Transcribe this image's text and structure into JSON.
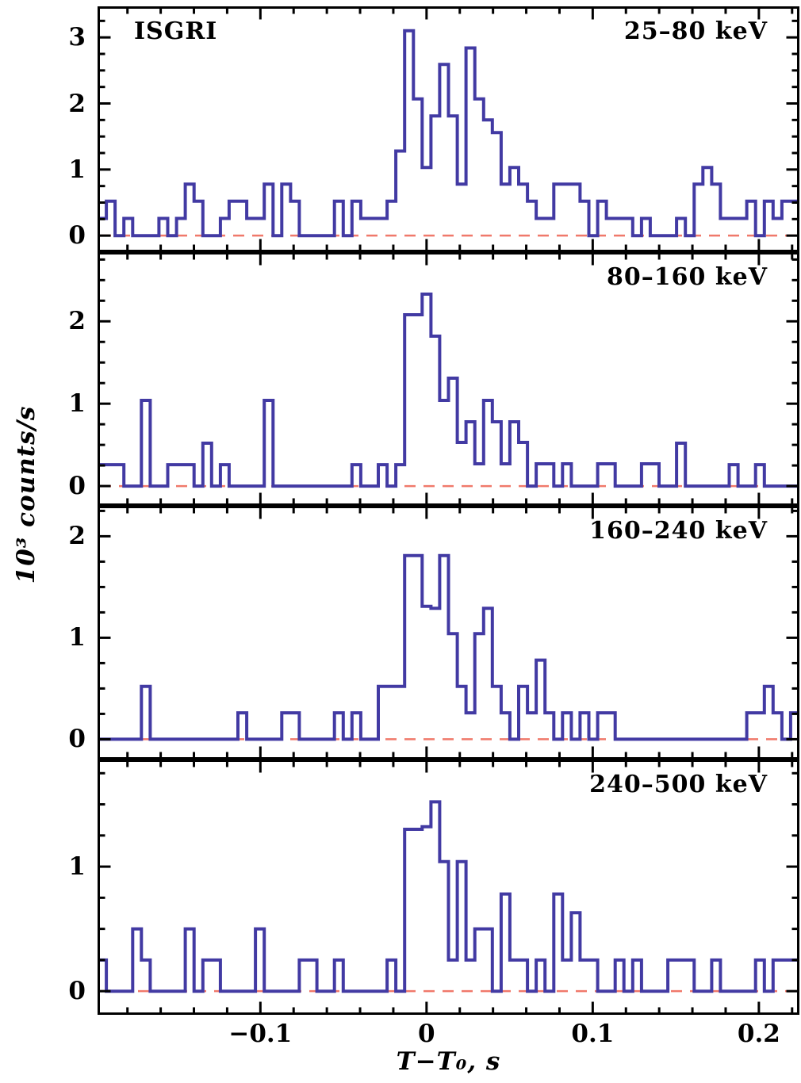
{
  "figure": {
    "instrument_label": "ISGRI",
    "x_axis_title": "T−T₀, s",
    "y_axis_title": "10³ counts/s",
    "colors": {
      "histogram": "#423aa3",
      "zero_line": "#f0796b",
      "frame": "#000000",
      "background": "#ffffff",
      "text": "#000000"
    },
    "x_axis": {
      "min": -0.198,
      "max": 0.2244,
      "major_ticks": [
        -0.1,
        0,
        0.1,
        0.2
      ],
      "major_tick_labels": [
        "−0.1",
        "0",
        "0.1",
        "0.2"
      ],
      "minor_tick_step": 0.02
    }
  },
  "chart_data": [
    {
      "type": "step-histogram",
      "energy_label": "25–80 keV",
      "unit": "10³ counts/s",
      "bin_start_s": -0.198,
      "bin_width_s": 0.00528,
      "ylim": [
        -0.25,
        3.47
      ],
      "y_major_ticks": [
        0,
        1,
        2,
        3
      ],
      "y_minor_step": 0.25,
      "values": [
        0.26,
        0.52,
        0,
        0.26,
        0,
        0,
        0,
        0.26,
        0,
        0.26,
        0.78,
        0.52,
        0,
        0,
        0.26,
        0.52,
        0.52,
        0.26,
        0.26,
        0.78,
        0,
        0.78,
        0.52,
        0,
        0,
        0,
        0,
        0.52,
        0,
        0.52,
        0.26,
        0.26,
        0.26,
        0.52,
        1.28,
        3.1,
        2.07,
        1.03,
        1.81,
        2.59,
        1.81,
        0.78,
        2.84,
        2.07,
        1.75,
        1.56,
        0.78,
        1.03,
        0.78,
        0.52,
        0.26,
        0.26,
        0.78,
        0.78,
        0.78,
        0.52,
        0,
        0.52,
        0.26,
        0.26,
        0.26,
        0,
        0.26,
        0,
        0,
        0,
        0.26,
        0,
        0.78,
        1.03,
        0.78,
        0.26,
        0.26,
        0.26,
        0.52,
        0,
        0.52,
        0.26,
        0.52,
        0.52
      ]
    },
    {
      "type": "step-histogram",
      "energy_label": "80–160 keV",
      "unit": "10³ counts/s",
      "bin_start_s": -0.198,
      "bin_width_s": 0.00528,
      "ylim": [
        -0.24,
        2.84
      ],
      "y_major_ticks": [
        0,
        1,
        2
      ],
      "y_minor_step": 0.25,
      "values": [
        0.26,
        0.26,
        0.26,
        0,
        0,
        1.04,
        0,
        0,
        0.26,
        0.26,
        0.26,
        0,
        0.52,
        0,
        0.26,
        0,
        0,
        0,
        0,
        1.04,
        0,
        0,
        0,
        0,
        0,
        0,
        0,
        0,
        0,
        0.26,
        0,
        0,
        0.26,
        0,
        0.26,
        2.08,
        2.08,
        2.33,
        1.82,
        1.04,
        1.31,
        0.53,
        0.78,
        0.27,
        1.04,
        0.78,
        0.27,
        0.78,
        0.53,
        0,
        0.27,
        0.27,
        0,
        0.27,
        0,
        0,
        0,
        0.27,
        0.27,
        0,
        0,
        0,
        0.27,
        0.27,
        0,
        0,
        0.52,
        0,
        0,
        0,
        0,
        0,
        0.26,
        0,
        0,
        0.26,
        0,
        0,
        0,
        0
      ]
    },
    {
      "type": "step-histogram",
      "energy_label": "160–240 keV",
      "unit": "10³ counts/s",
      "bin_start_s": -0.198,
      "bin_width_s": 0.00528,
      "ylim": [
        -0.2,
        2.3
      ],
      "y_major_ticks": [
        0,
        1,
        2
      ],
      "y_minor_step": 0.25,
      "values": [
        0,
        0,
        0,
        0,
        0,
        0.52,
        0,
        0,
        0,
        0,
        0,
        0,
        0,
        0,
        0,
        0,
        0.26,
        0,
        0,
        0,
        0,
        0.26,
        0.26,
        0,
        0,
        0,
        0,
        0.26,
        0,
        0.26,
        0,
        0,
        0.52,
        0.52,
        0.52,
        1.81,
        1.81,
        1.31,
        1.29,
        1.81,
        1.04,
        0.52,
        0.26,
        1.04,
        1.29,
        0.52,
        0.26,
        0,
        0.52,
        0.26,
        0.78,
        0.26,
        0,
        0.26,
        0,
        0.26,
        0,
        0.26,
        0.26,
        0,
        0,
        0,
        0,
        0,
        0,
        0,
        0,
        0,
        0,
        0,
        0,
        0,
        0,
        0,
        0.26,
        0.26,
        0.52,
        0.26,
        0,
        0.26
      ]
    },
    {
      "type": "step-histogram",
      "energy_label": "240–500 keV",
      "unit": "10³ counts/s",
      "bin_start_s": -0.198,
      "bin_width_s": 0.00528,
      "ylim": [
        -0.19,
        1.86
      ],
      "y_major_ticks": [
        0,
        1
      ],
      "y_minor_step": 0.25,
      "values": [
        0.25,
        0,
        0,
        0,
        0.5,
        0.25,
        0,
        0,
        0,
        0,
        0.5,
        0,
        0.25,
        0.25,
        0,
        0,
        0,
        0,
        0.5,
        0,
        0,
        0,
        0,
        0.25,
        0.25,
        0,
        0,
        0.25,
        0,
        0,
        0,
        0,
        0,
        0.25,
        0,
        1.3,
        1.3,
        1.32,
        1.52,
        1.04,
        0.25,
        1.04,
        0.25,
        0.5,
        0.5,
        0,
        0.78,
        0.25,
        0.25,
        0,
        0.25,
        0,
        0.78,
        0.25,
        0.63,
        0.25,
        0.25,
        0,
        0,
        0.25,
        0,
        0.25,
        0,
        0,
        0,
        0.25,
        0.25,
        0.25,
        0,
        0,
        0.25,
        0,
        0,
        0,
        0,
        0.25,
        0,
        0.25,
        0.25,
        0.25
      ]
    }
  ]
}
